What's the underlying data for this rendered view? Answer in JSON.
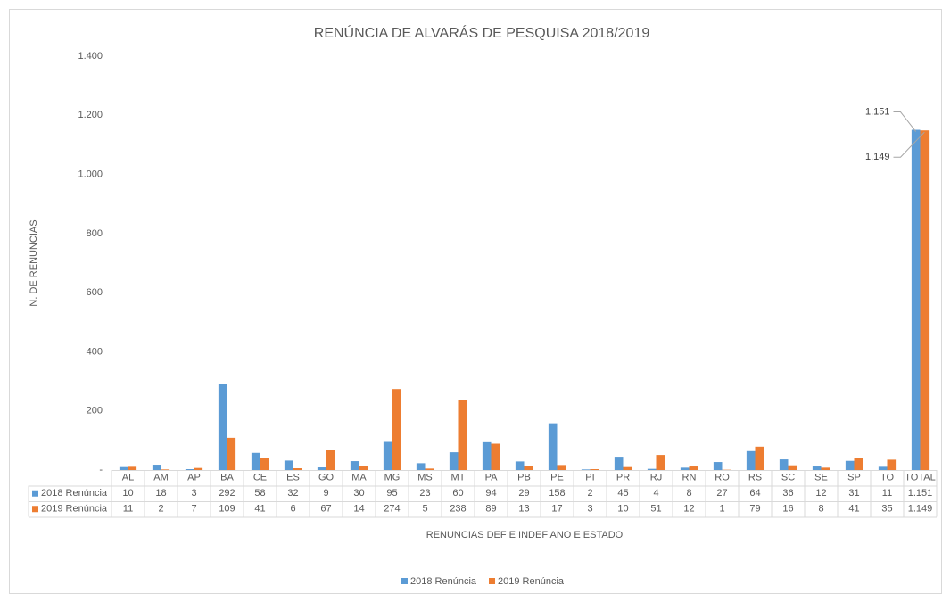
{
  "chart_data": {
    "type": "bar",
    "title": "RENÚNCIA DE ALVARÁS DE PESQUISA 2018/2019",
    "y_label": "N. DE RENUNCIAS",
    "x_label": "RENUNCIAS DEF E INDEF ANO E ESTADO",
    "categories": [
      "AL",
      "AM",
      "AP",
      "BA",
      "CE",
      "ES",
      "GO",
      "MA",
      "MG",
      "MS",
      "MT",
      "PA",
      "PB",
      "PE",
      "PI",
      "PR",
      "RJ",
      "RN",
      "RO",
      "RS",
      "SC",
      "SE",
      "SP",
      "TO",
      "TOTAL"
    ],
    "series": [
      {
        "name": "2018 Renúncia",
        "color": "#5b9bd5",
        "values": [
          10,
          18,
          3,
          292,
          58,
          32,
          9,
          30,
          95,
          23,
          60,
          94,
          29,
          158,
          2,
          45,
          4,
          8,
          27,
          64,
          36,
          12,
          31,
          11,
          1151
        ],
        "value_labels": [
          "10",
          "18",
          "3",
          "292",
          "58",
          "32",
          "9",
          "30",
          "95",
          "23",
          "60",
          "94",
          "29",
          "158",
          "2",
          "45",
          "4",
          "8",
          "27",
          "64",
          "36",
          "12",
          "31",
          "11",
          "1.151"
        ]
      },
      {
        "name": "2019 Renúncia",
        "color": "#ed7d31",
        "values": [
          11,
          2,
          7,
          109,
          41,
          6,
          67,
          14,
          274,
          5,
          238,
          89,
          13,
          17,
          3,
          10,
          51,
          12,
          1,
          79,
          16,
          8,
          41,
          35,
          1149
        ],
        "value_labels": [
          "11",
          "2",
          "7",
          "109",
          "41",
          "6",
          "67",
          "14",
          "274",
          "5",
          "238",
          "89",
          "13",
          "17",
          "3",
          "10",
          "51",
          "12",
          "1",
          "79",
          "16",
          "8",
          "41",
          "35",
          "1.149"
        ]
      }
    ],
    "ylim": [
      0,
      1400
    ],
    "yticks": [
      {
        "value": 0,
        "label": "-"
      },
      200,
      400,
      600,
      800,
      {
        "value": 1000,
        "label": "1.000"
      },
      {
        "value": 1200,
        "label": "1.200"
      },
      {
        "value": 1400,
        "label": "1.400"
      }
    ],
    "grid": false,
    "legend": "bottom"
  }
}
